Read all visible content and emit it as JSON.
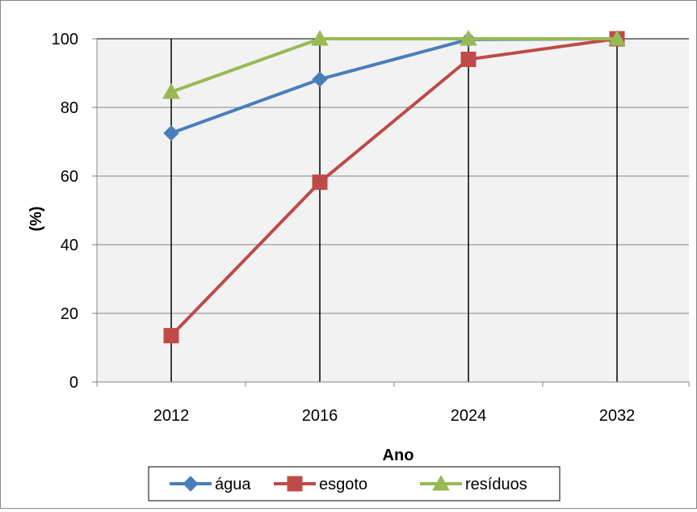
{
  "chart_data": {
    "type": "line",
    "title": "",
    "xlabel": "Ano",
    "ylabel": "(%)",
    "categories": [
      "2012",
      "2016",
      "2024",
      "2032"
    ],
    "ylim": [
      0,
      100
    ],
    "yticks": [
      0,
      20,
      40,
      60,
      80,
      100
    ],
    "grid": true,
    "legend_position": "bottom",
    "series": [
      {
        "name": "água",
        "color": "#4a7ebb",
        "marker": "diamond",
        "values": [
          72.5,
          88.2,
          99.8,
          100
        ]
      },
      {
        "name": "esgoto",
        "color": "#be4b48",
        "marker": "square",
        "values": [
          13.5,
          58.2,
          94.0,
          100
        ]
      },
      {
        "name": "resíduos",
        "color": "#98b954",
        "marker": "triangle",
        "values": [
          84.5,
          100,
          100,
          100
        ]
      }
    ]
  }
}
